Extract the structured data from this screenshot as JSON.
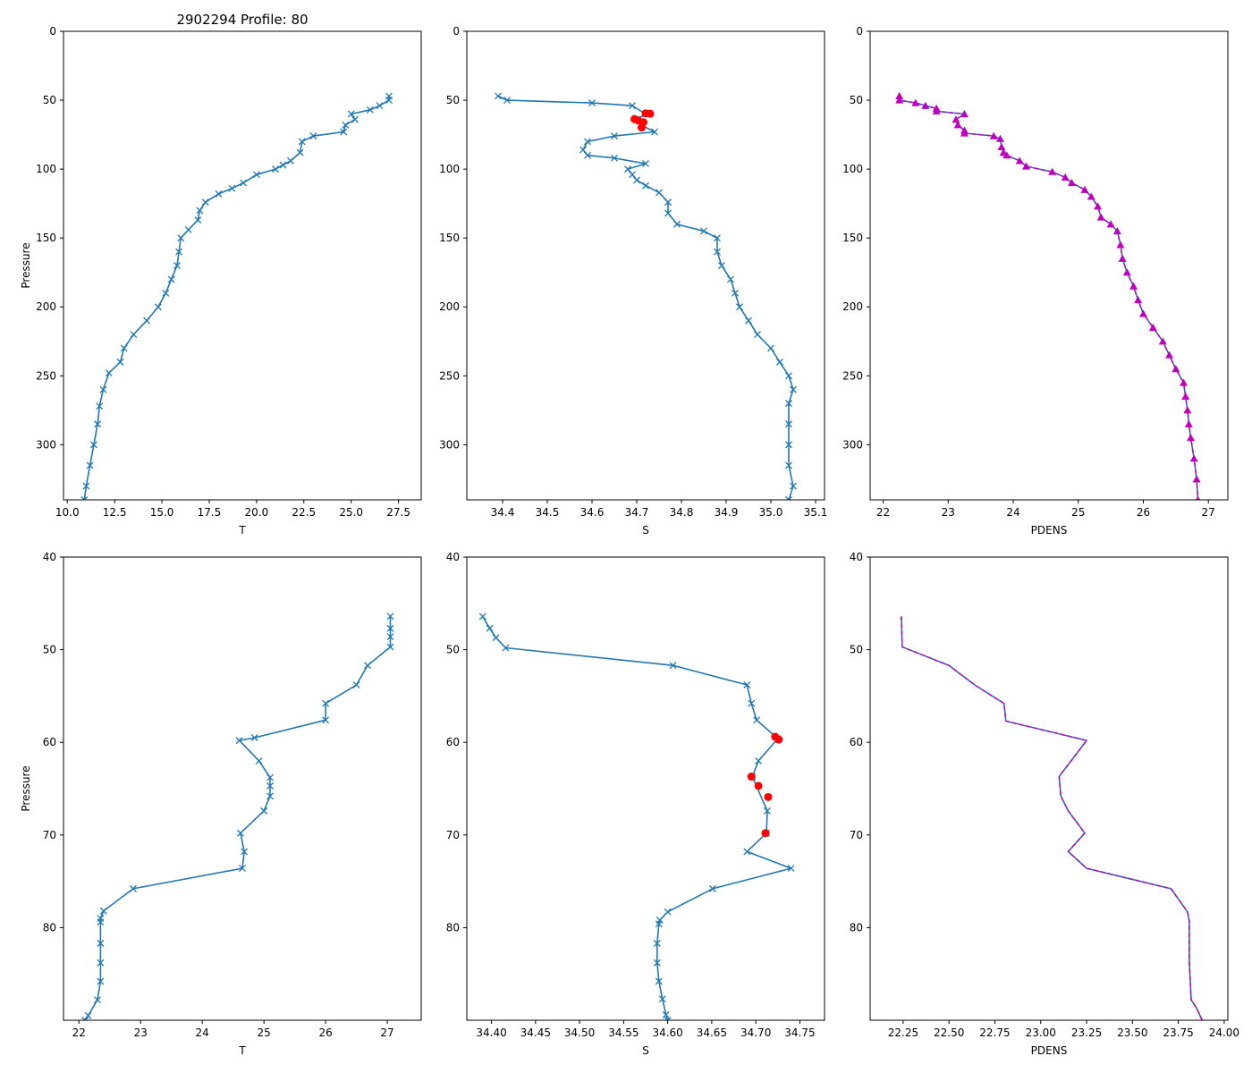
{
  "figure_title": "2902294 Profile: 80",
  "colors": {
    "line": "#1f77b4",
    "flag": "#ff0000",
    "density": "#bf00bf",
    "axis": "#000000"
  },
  "chart_data": [
    {
      "id": "top-temperature",
      "type": "line",
      "title": "2902294 Profile: 80",
      "xlabel": "T",
      "ylabel": "Pressure",
      "xlim": [
        9.8,
        28.7
      ],
      "ylim": [
        340,
        0
      ],
      "xticks": [
        10.0,
        12.5,
        15.0,
        17.5,
        20.0,
        22.5,
        25.0,
        27.5
      ],
      "xtick_labels": [
        "10.0",
        "12.5",
        "15.0",
        "17.5",
        "20.0",
        "22.5",
        "25.0",
        "27.5"
      ],
      "yticks": [
        0,
        50,
        100,
        150,
        200,
        250,
        300
      ],
      "ytick_labels": [
        "0",
        "50",
        "100",
        "150",
        "200",
        "250",
        "300"
      ],
      "marker": "x",
      "series": [
        {
          "name": "T",
          "points": [
            [
              27.0,
              47
            ],
            [
              27.0,
              50
            ],
            [
              26.5,
              54
            ],
            [
              26.0,
              57
            ],
            [
              25.0,
              60
            ],
            [
              25.2,
              64
            ],
            [
              24.7,
              68
            ],
            [
              24.6,
              73
            ],
            [
              23.0,
              76
            ],
            [
              22.4,
              80
            ],
            [
              22.3,
              88
            ],
            [
              21.8,
              94
            ],
            [
              21.4,
              97
            ],
            [
              21.0,
              100
            ],
            [
              20.0,
              104
            ],
            [
              19.3,
              110
            ],
            [
              18.7,
              114
            ],
            [
              18.0,
              118
            ],
            [
              17.3,
              124
            ],
            [
              17.0,
              130
            ],
            [
              16.9,
              137
            ],
            [
              16.4,
              144
            ],
            [
              16.0,
              150
            ],
            [
              15.9,
              160
            ],
            [
              15.8,
              170
            ],
            [
              15.5,
              180
            ],
            [
              15.2,
              190
            ],
            [
              14.8,
              200
            ],
            [
              14.2,
              210
            ],
            [
              13.5,
              220
            ],
            [
              13.0,
              230
            ],
            [
              12.8,
              240
            ],
            [
              12.2,
              248
            ],
            [
              11.9,
              260
            ],
            [
              11.7,
              272
            ],
            [
              11.6,
              285
            ],
            [
              11.4,
              300
            ],
            [
              11.2,
              315
            ],
            [
              11.0,
              330
            ],
            [
              10.9,
              340
            ]
          ]
        }
      ]
    },
    {
      "id": "top-salinity",
      "type": "line",
      "title": "",
      "xlabel": "S",
      "ylabel": "",
      "xlim": [
        34.32,
        35.12
      ],
      "ylim": [
        340,
        0
      ],
      "xticks": [
        34.4,
        34.5,
        34.6,
        34.7,
        34.8,
        34.9,
        35.0,
        35.1
      ],
      "xtick_labels": [
        "34.4",
        "34.5",
        "34.6",
        "34.7",
        "34.8",
        "34.9",
        "35.0",
        "35.1"
      ],
      "yticks": [
        0,
        50,
        100,
        150,
        200,
        250,
        300
      ],
      "ytick_labels": [
        "0",
        "50",
        "100",
        "150",
        "200",
        "250",
        "300"
      ],
      "marker": "x",
      "series": [
        {
          "name": "S",
          "points": [
            [
              34.39,
              47
            ],
            [
              34.41,
              50
            ],
            [
              34.6,
              52
            ],
            [
              34.69,
              54
            ],
            [
              34.72,
              60
            ],
            [
              34.7,
              64
            ],
            [
              34.71,
              68
            ],
            [
              34.74,
              73
            ],
            [
              34.65,
              76
            ],
            [
              34.59,
              80
            ],
            [
              34.58,
              86
            ],
            [
              34.59,
              90
            ],
            [
              34.65,
              92
            ],
            [
              34.72,
              96
            ],
            [
              34.68,
              100
            ],
            [
              34.69,
              104
            ],
            [
              34.7,
              108
            ],
            [
              34.72,
              112
            ],
            [
              34.75,
              117
            ],
            [
              34.77,
              124
            ],
            [
              34.77,
              132
            ],
            [
              34.79,
              140
            ],
            [
              34.85,
              145
            ],
            [
              34.88,
              150
            ],
            [
              34.88,
              160
            ],
            [
              34.89,
              170
            ],
            [
              34.91,
              180
            ],
            [
              34.92,
              190
            ],
            [
              34.93,
              200
            ],
            [
              34.95,
              210
            ],
            [
              34.97,
              220
            ],
            [
              35.0,
              230
            ],
            [
              35.02,
              240
            ],
            [
              35.04,
              250
            ],
            [
              35.05,
              260
            ],
            [
              35.04,
              270
            ],
            [
              35.04,
              285
            ],
            [
              35.04,
              300
            ],
            [
              35.04,
              315
            ],
            [
              35.05,
              330
            ],
            [
              35.04,
              340
            ]
          ]
        }
      ],
      "flagged_points": [
        [
          34.72,
          59.5
        ],
        [
          34.73,
          59.8
        ],
        [
          34.695,
          63.7
        ],
        [
          34.703,
          64.7
        ],
        [
          34.715,
          66
        ],
        [
          34.711,
          69.8
        ]
      ]
    },
    {
      "id": "top-density",
      "type": "line",
      "title": "",
      "xlabel": "PDENS",
      "ylabel": "",
      "xlim": [
        21.8,
        27.3
      ],
      "ylim": [
        340,
        0
      ],
      "xticks": [
        22,
        23,
        24,
        25,
        26,
        27
      ],
      "xtick_labels": [
        "22",
        "23",
        "24",
        "25",
        "26",
        "27"
      ],
      "yticks": [
        0,
        50,
        100,
        150,
        200,
        250,
        300
      ],
      "ytick_labels": [
        "0",
        "50",
        "100",
        "150",
        "200",
        "250",
        "300"
      ],
      "marker": "triangle",
      "series": [
        {
          "name": "PDENS",
          "points": [
            [
              22.25,
              47
            ],
            [
              22.25,
              50
            ],
            [
              22.5,
              52
            ],
            [
              22.65,
              54
            ],
            [
              22.82,
              56
            ],
            [
              22.82,
              58
            ],
            [
              23.25,
              60
            ],
            [
              23.12,
              64
            ],
            [
              23.15,
              68
            ],
            [
              23.25,
              72
            ],
            [
              23.25,
              74
            ],
            [
              23.7,
              76
            ],
            [
              23.8,
              78
            ],
            [
              23.82,
              84
            ],
            [
              23.85,
              88
            ],
            [
              23.9,
              90
            ],
            [
              24.1,
              94
            ],
            [
              24.2,
              98
            ],
            [
              24.6,
              102
            ],
            [
              24.8,
              106
            ],
            [
              24.9,
              110
            ],
            [
              25.1,
              115
            ],
            [
              25.2,
              120
            ],
            [
              25.3,
              127
            ],
            [
              25.35,
              135
            ],
            [
              25.5,
              140
            ],
            [
              25.6,
              145
            ],
            [
              25.65,
              155
            ],
            [
              25.68,
              165
            ],
            [
              25.75,
              175
            ],
            [
              25.85,
              185
            ],
            [
              25.92,
              195
            ],
            [
              26.0,
              205
            ],
            [
              26.15,
              215
            ],
            [
              26.3,
              225
            ],
            [
              26.4,
              235
            ],
            [
              26.5,
              245
            ],
            [
              26.62,
              255
            ],
            [
              26.65,
              265
            ],
            [
              26.68,
              275
            ],
            [
              26.7,
              285
            ],
            [
              26.73,
              295
            ],
            [
              26.78,
              310
            ],
            [
              26.82,
              325
            ],
            [
              26.84,
              340
            ]
          ]
        }
      ]
    },
    {
      "id": "bottom-temperature",
      "type": "line",
      "title": "",
      "xlabel": "T",
      "ylabel": "Pressure",
      "xlim": [
        21.75,
        27.55
      ],
      "ylim": [
        90,
        40
      ],
      "xticks": [
        22,
        23,
        24,
        25,
        26,
        27
      ],
      "xtick_labels": [
        "22",
        "23",
        "24",
        "25",
        "26",
        "27"
      ],
      "yticks": [
        40,
        50,
        60,
        70,
        80
      ],
      "ytick_labels": [
        "40",
        "50",
        "60",
        "70",
        "80"
      ],
      "marker": "x",
      "series": [
        {
          "name": "T",
          "points": [
            [
              27.05,
              46.4
            ],
            [
              27.05,
              47.7
            ],
            [
              27.05,
              48.6
            ],
            [
              27.05,
              49.7
            ],
            [
              26.68,
              51.7
            ],
            [
              26.5,
              53.8
            ],
            [
              26.0,
              55.8
            ],
            [
              26.0,
              57.6
            ],
            [
              24.85,
              59.5
            ],
            [
              24.6,
              59.8
            ],
            [
              24.92,
              62.0
            ],
            [
              25.1,
              63.8
            ],
            [
              25.1,
              64.7
            ],
            [
              25.1,
              65.8
            ],
            [
              25.0,
              67.4
            ],
            [
              24.62,
              69.8
            ],
            [
              24.68,
              71.8
            ],
            [
              24.65,
              73.6
            ],
            [
              22.88,
              75.8
            ],
            [
              22.4,
              78.2
            ],
            [
              22.35,
              79.0
            ],
            [
              22.35,
              79.4
            ],
            [
              22.35,
              81.7
            ],
            [
              22.35,
              83.8
            ],
            [
              22.35,
              85.8
            ],
            [
              22.3,
              87.8
            ],
            [
              22.15,
              89.5
            ],
            [
              22.1,
              90
            ]
          ]
        }
      ]
    },
    {
      "id": "bottom-salinity",
      "type": "line",
      "title": "",
      "xlabel": "S",
      "ylabel": "",
      "xlim": [
        34.372,
        34.778
      ],
      "ylim": [
        90,
        40
      ],
      "xticks": [
        34.4,
        34.45,
        34.5,
        34.55,
        34.6,
        34.65,
        34.7,
        34.75
      ],
      "xtick_labels": [
        "34.40",
        "34.45",
        "34.50",
        "34.55",
        "34.60",
        "34.65",
        "34.70",
        "34.75"
      ],
      "yticks": [
        40,
        50,
        60,
        70,
        80
      ],
      "ytick_labels": [
        "40",
        "50",
        "60",
        "70",
        "80"
      ],
      "marker": "x",
      "series": [
        {
          "name": "S",
          "points": [
            [
              34.39,
              46.4
            ],
            [
              34.398,
              47.7
            ],
            [
              34.405,
              48.7
            ],
            [
              34.416,
              49.8
            ],
            [
              34.606,
              51.7
            ],
            [
              34.69,
              53.8
            ],
            [
              34.695,
              55.8
            ],
            [
              34.701,
              57.6
            ],
            [
              34.725,
              59.6
            ],
            [
              34.703,
              62.0
            ],
            [
              34.696,
              63.7
            ],
            [
              34.713,
              67.4
            ],
            [
              34.712,
              69.8
            ],
            [
              34.69,
              71.8
            ],
            [
              34.74,
              73.6
            ],
            [
              34.651,
              75.8
            ],
            [
              34.6,
              78.3
            ],
            [
              34.591,
              79.2
            ],
            [
              34.59,
              79.6
            ],
            [
              34.588,
              81.7
            ],
            [
              34.588,
              83.8
            ],
            [
              34.59,
              85.8
            ],
            [
              34.594,
              87.7
            ],
            [
              34.598,
              89.4
            ],
            [
              34.6,
              90
            ]
          ]
        }
      ],
      "flagged_points": [
        [
          34.722,
          59.4
        ],
        [
          34.726,
          59.7
        ],
        [
          34.695,
          63.7
        ],
        [
          34.703,
          64.7
        ],
        [
          34.714,
          65.9
        ],
        [
          34.711,
          69.8
        ]
      ]
    },
    {
      "id": "bottom-density",
      "type": "line",
      "title": "",
      "xlabel": "PDENS",
      "ylabel": "",
      "xlim": [
        22.07,
        24.02
      ],
      "ylim": [
        90,
        40
      ],
      "xticks": [
        22.25,
        22.5,
        22.75,
        23.0,
        23.25,
        23.5,
        23.75,
        24.0
      ],
      "xtick_labels": [
        "22.25",
        "22.50",
        "22.75",
        "23.00",
        "23.25",
        "23.50",
        "23.75",
        "24.00"
      ],
      "yticks": [
        40,
        50,
        60,
        70,
        80
      ],
      "ytick_labels": [
        "40",
        "50",
        "60",
        "70",
        "80"
      ],
      "marker": "none",
      "series": [
        {
          "name": "PDENS",
          "points": [
            [
              22.24,
              46.4
            ],
            [
              22.245,
              49.7
            ],
            [
              22.5,
              51.7
            ],
            [
              22.64,
              53.8
            ],
            [
              22.8,
              55.8
            ],
            [
              22.81,
              57.7
            ],
            [
              23.25,
              59.8
            ],
            [
              23.1,
              63.7
            ],
            [
              23.11,
              65.8
            ],
            [
              23.15,
              67.4
            ],
            [
              23.24,
              69.8
            ],
            [
              23.15,
              71.8
            ],
            [
              23.25,
              73.6
            ],
            [
              23.71,
              75.8
            ],
            [
              23.8,
              78.3
            ],
            [
              23.81,
              79.3
            ],
            [
              23.81,
              83.8
            ],
            [
              23.82,
              87.8
            ],
            [
              23.85,
              88.7
            ],
            [
              23.88,
              90
            ]
          ]
        }
      ]
    }
  ]
}
